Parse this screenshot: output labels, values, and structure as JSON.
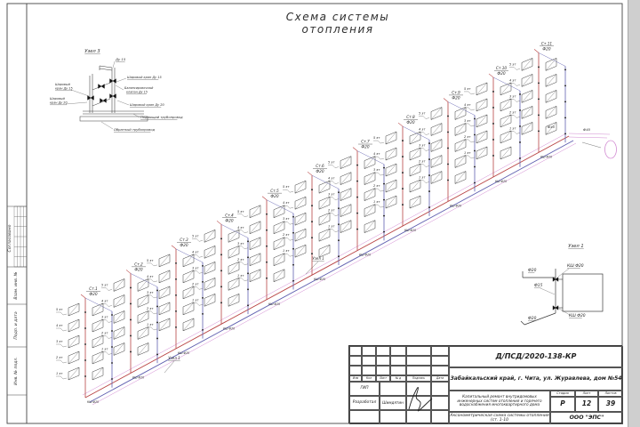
{
  "title": "Схема системы отопления",
  "margin_stamp": {
    "approved": "Согласовано",
    "fields": [
      "Взам. инв. №",
      "Подп. и дата",
      "Инв. № подл."
    ]
  },
  "scheme": {
    "risers": [
      {
        "label": "Ст.1",
        "dia": "Ф20"
      },
      {
        "label": "Ст.2",
        "dia": "Ф20"
      },
      {
        "label": "Ст.3",
        "dia": "Ф20"
      },
      {
        "label": "Ст.4",
        "dia": "Ф20"
      },
      {
        "label": "Ст.5",
        "dia": "Ф20"
      },
      {
        "label": "Ст.6",
        "dia": "Ф20"
      },
      {
        "label": "Ст.7",
        "dia": "Ф20"
      },
      {
        "label": "Ст.8",
        "dia": "Ф20"
      },
      {
        "label": "Ст.9",
        "dia": "Ф20"
      },
      {
        "label": "Ст.10",
        "dia": "Ф20"
      },
      {
        "label": "Ст.11",
        "dia": "Ф20"
      }
    ],
    "floors": [
      "1 эт",
      "2 эт",
      "3 эт",
      "4 эт",
      "5 эт"
    ],
    "valve_label": "КШ Ф20",
    "node_ref": "Узел 1",
    "main_dia": "Ф40",
    "colors": {
      "supply": "#b84444",
      "return": "#6060b0",
      "outline": "#d28ad2"
    }
  },
  "node3": {
    "title": "Узел 3",
    "branch_dia": "Ду 15",
    "right_labels": [
      "Шаровый кран Ду 15",
      "Балансировочный клапан Ду 15",
      "Шаровый кран Ду 20"
    ],
    "left_labels": [
      "Шаровый кран Ду 15",
      "Шаровый кран Ду 20"
    ],
    "supply_label": "Подающий трубопровод",
    "return_label": "Обратный трубопровод"
  },
  "node1": {
    "title": "Узел 1",
    "top_dia": "Ф20",
    "top_valve": "КШ Ф20",
    "mid_dia": "Ф15",
    "bottom_dia": "Ф20",
    "bottom_valve": "КШ Ф20"
  },
  "title_block": {
    "doc_number": "Д/ПСД/2020-138-КР",
    "address": "Забайкальский край, г. Чита, ул. Журавлева, дом №54",
    "project": "Капитальный ремонт внутридомовых инженерных систем отопления и горячего водоснабжения многоквартирного дома",
    "sheet_title": "Аксонометрическая схема системы отопления (ст. 1-10",
    "company": "ООО \"ЭПС\"",
    "stage_label": "Стадия",
    "sheet_label": "Лист",
    "sheets_label": "Листов",
    "stage": "Р",
    "sheet_no": "12",
    "sheets_total": "39",
    "header_cols": [
      "Изм",
      "Кол",
      "Лист",
      "№ д",
      "Подпись",
      "Дата"
    ],
    "sign_rows": [
      {
        "role": "ГИП",
        "name": ""
      },
      {
        "role": "Разработал",
        "name": "Шимдятин"
      }
    ]
  }
}
